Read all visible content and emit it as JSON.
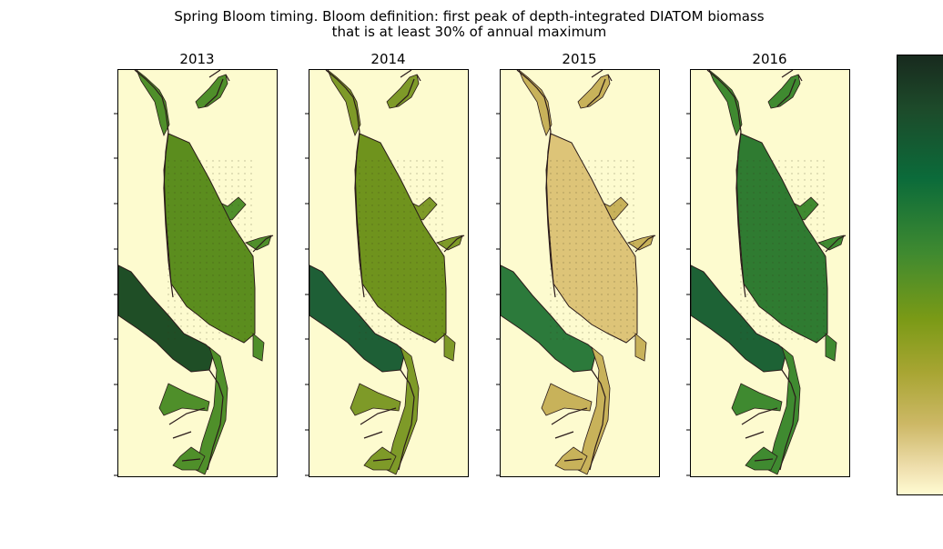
{
  "figure": {
    "title_line1": "Spring Bloom timing. Bloom definition: first peak of depth-integrated DIATOM biomass",
    "title_line2": "that is at least 30% of annual maximum"
  },
  "panels": [
    {
      "year": "2013",
      "strait_color": "#5b8d1e",
      "shelf_color": "#1f4e26",
      "inlet_color": "#4f8f2a"
    },
    {
      "year": "2014",
      "strait_color": "#6f931d",
      "shelf_color": "#1e5f36",
      "inlet_color": "#7e9a28"
    },
    {
      "year": "2015",
      "strait_color": "#ddc478",
      "shelf_color": "#2c7a3b",
      "inlet_color": "#c8b25a"
    },
    {
      "year": "2016",
      "strait_color": "#2f7b31",
      "shelf_color": "#1d6235",
      "inlet_color": "#3f8a30"
    }
  ],
  "colors": {
    "land": "#fdfbcf",
    "coastline": "#2a1a1a",
    "colormap": "speed"
  }
}
